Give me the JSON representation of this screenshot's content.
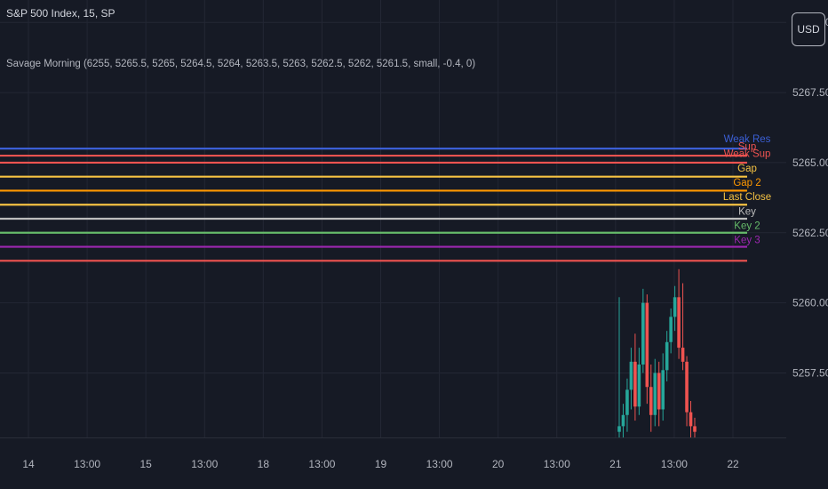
{
  "header": {
    "symbol": "S&P 500 Index, 15, SP",
    "indicator": "Savage Morning (6255, 5265.5, 5265, 5264.5, 5264, 5263.5, 5263, 5262.5, 5262, 5261.5, small, -0.4, 0)"
  },
  "currency_button": "USD",
  "colors": {
    "background": "#161a25",
    "grid": "#232734",
    "up_candle": "#26a69a",
    "down_candle": "#ef5350",
    "text": "#b2b5be"
  },
  "chart_data": {
    "type": "line",
    "y_axis": {
      "ticks": [
        5257.5,
        5260,
        5262.5,
        5265,
        5267.5,
        5270
      ],
      "tick_labels": [
        "5257.50",
        "5260.00",
        "5262.50",
        "5265.00",
        "5267.50",
        "5270.00"
      ],
      "ylim": [
        5255.2,
        5270.8
      ],
      "position": "right"
    },
    "x_axis": {
      "tick_labels": [
        "14",
        "13:00",
        "15",
        "13:00",
        "18",
        "13:00",
        "19",
        "13:00",
        "20",
        "13:00",
        "21",
        "13:00",
        "22"
      ],
      "day_ticks": [
        "14",
        "15",
        "18",
        "19",
        "20",
        "21",
        "22"
      ],
      "range_days": [
        13.9,
        22.25
      ]
    },
    "grid": true,
    "levels": [
      {
        "label": "Weak Res",
        "value": 5265.5,
        "color": "#3b5fd6"
      },
      {
        "label": "Sup",
        "value": 5265.25,
        "color": "#ef5350"
      },
      {
        "label": "Weak Sup",
        "value": 5265.0,
        "color": "#ef5350"
      },
      {
        "label": "Gap",
        "value": 5264.5,
        "color": "#f5c242"
      },
      {
        "label": "Gap 2",
        "value": 5264.0,
        "color": "#ff9800"
      },
      {
        "label": "Last Close",
        "value": 5263.5,
        "color": "#f5c242"
      },
      {
        "label": "Key",
        "value": 5263.0,
        "color": "#bdbdbd"
      },
      {
        "label": "Key 2",
        "value": 5262.5,
        "color": "#66bb6a"
      },
      {
        "label": "Key 3",
        "value": 5262.0,
        "color": "#9c27b0"
      },
      {
        "label": "",
        "value": 5261.5,
        "color": "#ef5350"
      }
    ],
    "candles": [
      {
        "t": 21.0,
        "o": 5255.4,
        "h": 5260.2,
        "l": 5255.2,
        "c": 5255.6
      },
      {
        "t": 21.02,
        "o": 5255.6,
        "h": 5256.4,
        "l": 5255.2,
        "c": 5256.0
      },
      {
        "t": 21.04,
        "o": 5256.0,
        "h": 5257.3,
        "l": 5255.4,
        "c": 5256.9
      },
      {
        "t": 21.06,
        "o": 5256.9,
        "h": 5258.4,
        "l": 5256.2,
        "c": 5257.9
      },
      {
        "t": 21.08,
        "o": 5257.9,
        "h": 5258.9,
        "l": 5255.8,
        "c": 5256.3
      },
      {
        "t": 21.1,
        "o": 5256.3,
        "h": 5258.4,
        "l": 5256.0,
        "c": 5257.8
      },
      {
        "t": 21.12,
        "o": 5257.8,
        "h": 5260.5,
        "l": 5257.5,
        "c": 5260.0
      },
      {
        "t": 21.14,
        "o": 5260.0,
        "h": 5260.3,
        "l": 5256.4,
        "c": 5257.0
      },
      {
        "t": 21.16,
        "o": 5257.0,
        "h": 5257.8,
        "l": 5255.4,
        "c": 5256.0
      },
      {
        "t": 21.18,
        "o": 5256.0,
        "h": 5258.0,
        "l": 5255.6,
        "c": 5257.5
      },
      {
        "t": 21.2,
        "o": 5257.5,
        "h": 5257.9,
        "l": 5255.6,
        "c": 5256.2
      },
      {
        "t": 21.22,
        "o": 5256.2,
        "h": 5258.2,
        "l": 5255.8,
        "c": 5257.6
      },
      {
        "t": 21.24,
        "o": 5257.6,
        "h": 5259.0,
        "l": 5257.2,
        "c": 5258.6
      },
      {
        "t": 21.26,
        "o": 5258.6,
        "h": 5259.8,
        "l": 5258.2,
        "c": 5259.5
      },
      {
        "t": 21.28,
        "o": 5259.5,
        "h": 5260.6,
        "l": 5259.0,
        "c": 5260.2
      },
      {
        "t": 21.3,
        "o": 5260.2,
        "h": 5261.2,
        "l": 5258.0,
        "c": 5258.4
      },
      {
        "t": 21.32,
        "o": 5258.4,
        "h": 5260.7,
        "l": 5257.6,
        "c": 5257.9
      },
      {
        "t": 21.34,
        "o": 5257.9,
        "h": 5258.1,
        "l": 5255.6,
        "c": 5256.1
      },
      {
        "t": 21.36,
        "o": 5256.1,
        "h": 5256.5,
        "l": 5255.2,
        "c": 5255.6
      },
      {
        "t": 21.38,
        "o": 5255.6,
        "h": 5255.9,
        "l": 5255.2,
        "c": 5255.4
      }
    ]
  }
}
